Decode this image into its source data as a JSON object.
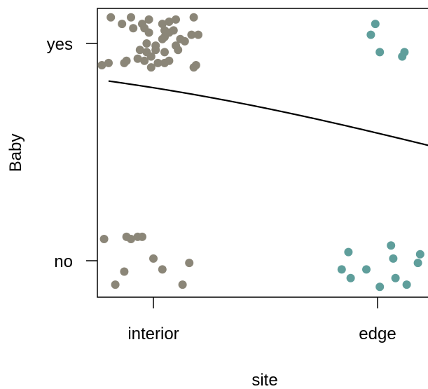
{
  "chart_data": {
    "type": "scatter",
    "title": "",
    "xlabel": "site",
    "ylabel": "Baby",
    "x_categories": [
      "interior",
      "edge"
    ],
    "y_categories": [
      "yes",
      "no"
    ],
    "colors": {
      "interior": "#8b8678",
      "edge": "#5f9e9b",
      "curve": "#000000"
    },
    "grid": false,
    "legend": "none",
    "series": [
      {
        "category": "interior",
        "response": "yes",
        "points": [
          [
            -0.19,
            0.12
          ],
          [
            -0.1,
            0.12
          ],
          [
            -0.02,
            0.11
          ],
          [
            0.1,
            0.11
          ],
          [
            0.18,
            0.12
          ],
          [
            -0.14,
            0.09
          ],
          [
            -0.05,
            0.09
          ],
          [
            0.04,
            0.09
          ],
          [
            0.07,
            0.1
          ],
          [
            -0.09,
            0.07
          ],
          [
            -0.04,
            0.07
          ],
          [
            0.05,
            0.06
          ],
          [
            0.09,
            0.06
          ],
          [
            0.2,
            0.04
          ],
          [
            -0.02,
            0.05
          ],
          [
            0.07,
            0.05
          ],
          [
            0.17,
            0.04
          ],
          [
            0.12,
            0.02
          ],
          [
            0.14,
            0.01
          ],
          [
            0.05,
            0.03
          ],
          [
            -0.03,
            0.0
          ],
          [
            0.01,
            -0.01
          ],
          [
            0.1,
            -0.01
          ],
          [
            0.04,
            0.02
          ],
          [
            -0.06,
            -0.03
          ],
          [
            -0.03,
            -0.04
          ],
          [
            0.01,
            -0.03
          ],
          [
            0.05,
            -0.04
          ],
          [
            0.11,
            -0.03
          ],
          [
            -0.01,
            -0.06
          ],
          [
            -0.12,
            -0.08
          ],
          [
            -0.13,
            -0.09
          ],
          [
            -0.07,
            -0.07
          ],
          [
            -0.04,
            -0.08
          ],
          [
            0.07,
            -0.08
          ],
          [
            0.02,
            -0.09
          ],
          [
            -0.23,
            -0.1
          ],
          [
            -0.01,
            -0.11
          ],
          [
            0.18,
            -0.11
          ],
          [
            0.19,
            -0.1
          ],
          [
            0.05,
            -0.09
          ],
          [
            -0.2,
            -0.09
          ]
        ]
      },
      {
        "category": "edge",
        "response": "yes",
        "points": [
          [
            -0.01,
            0.09
          ],
          [
            -0.03,
            0.04
          ],
          [
            0.01,
            -0.04
          ],
          [
            0.12,
            -0.04
          ],
          [
            0.11,
            -0.06
          ]
        ]
      },
      {
        "category": "interior",
        "response": "no",
        "points": [
          [
            -0.22,
            0.1
          ],
          [
            -0.12,
            0.11
          ],
          [
            -0.1,
            0.1
          ],
          [
            -0.07,
            0.11
          ],
          [
            -0.05,
            0.11
          ],
          [
            0.0,
            0.01
          ],
          [
            0.16,
            -0.01
          ],
          [
            0.04,
            -0.04
          ],
          [
            -0.13,
            -0.05
          ],
          [
            -0.17,
            -0.11
          ],
          [
            0.13,
            -0.11
          ]
        ]
      },
      {
        "category": "edge",
        "response": "no",
        "points": [
          [
            -0.13,
            0.04
          ],
          [
            0.06,
            0.07
          ],
          [
            0.19,
            0.03
          ],
          [
            0.07,
            0.01
          ],
          [
            0.18,
            -0.01
          ],
          [
            -0.16,
            -0.04
          ],
          [
            -0.05,
            -0.04
          ],
          [
            -0.12,
            -0.08
          ],
          [
            0.08,
            -0.08
          ],
          [
            0.01,
            -0.12
          ],
          [
            0.13,
            -0.11
          ]
        ]
      }
    ],
    "curve": {
      "description": "logistic fit",
      "x": [
        -0.2,
        0.0,
        0.25,
        0.5,
        0.75,
        1.0,
        1.25
      ],
      "p": [
        0.827,
        0.805,
        0.766,
        0.714,
        0.653,
        0.589,
        0.525
      ]
    }
  }
}
